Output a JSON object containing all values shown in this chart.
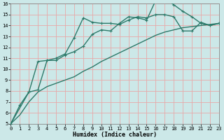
{
  "title": "",
  "xlabel": "Humidex (Indice chaleur)",
  "bg_color": "#cce8e8",
  "grid_color": "#e8a8a8",
  "line_color": "#2d7a6a",
  "markersize": 3,
  "linewidth": 1.0,
  "xlim": [
    0,
    23
  ],
  "ylim": [
    5,
    16
  ],
  "xticks": [
    0,
    1,
    2,
    3,
    4,
    5,
    6,
    7,
    8,
    9,
    10,
    11,
    12,
    13,
    14,
    15,
    16,
    17,
    18,
    19,
    20,
    21,
    22,
    23
  ],
  "yticks": [
    5,
    6,
    7,
    8,
    9,
    10,
    11,
    12,
    13,
    14,
    15,
    16
  ],
  "line1_x": [
    0,
    1,
    2,
    3,
    4,
    5,
    6,
    7,
    8,
    9,
    10,
    11,
    12,
    13,
    14,
    15,
    16,
    17,
    18,
    19,
    20,
    21,
    22,
    23
  ],
  "line1_y": [
    5.0,
    6.7,
    7.9,
    8.1,
    10.8,
    10.8,
    11.3,
    11.6,
    12.1,
    13.2,
    13.6,
    13.5,
    14.2,
    14.8,
    14.7,
    14.5,
    16.3,
    16.5,
    15.9,
    15.3,
    14.8,
    14.2,
    14.0,
    14.2
  ],
  "line2_x": [
    0,
    2,
    3,
    4,
    5,
    6,
    7,
    8,
    9,
    10,
    11,
    12,
    13,
    14,
    15,
    16,
    17,
    18,
    19,
    20,
    21,
    22,
    23
  ],
  "line2_y": [
    5.0,
    7.9,
    10.7,
    10.8,
    11.0,
    11.4,
    12.9,
    14.7,
    14.3,
    14.2,
    14.2,
    14.1,
    14.5,
    14.8,
    14.7,
    15.0,
    15.0,
    14.8,
    13.5,
    13.5,
    14.3,
    14.0,
    14.2
  ],
  "line3_x": [
    0,
    1,
    2,
    3,
    4,
    5,
    6,
    7,
    8,
    9,
    10,
    11,
    12,
    13,
    14,
    15,
    16,
    17,
    18,
    19,
    20,
    21,
    22,
    23
  ],
  "line3_y": [
    5.0,
    5.8,
    7.0,
    7.9,
    8.4,
    8.7,
    9.0,
    9.3,
    9.8,
    10.2,
    10.7,
    11.1,
    11.5,
    11.9,
    12.3,
    12.7,
    13.1,
    13.4,
    13.6,
    13.8,
    13.9,
    14.0,
    14.1,
    14.2
  ],
  "tick_fontsize": 5,
  "xlabel_fontsize": 6
}
